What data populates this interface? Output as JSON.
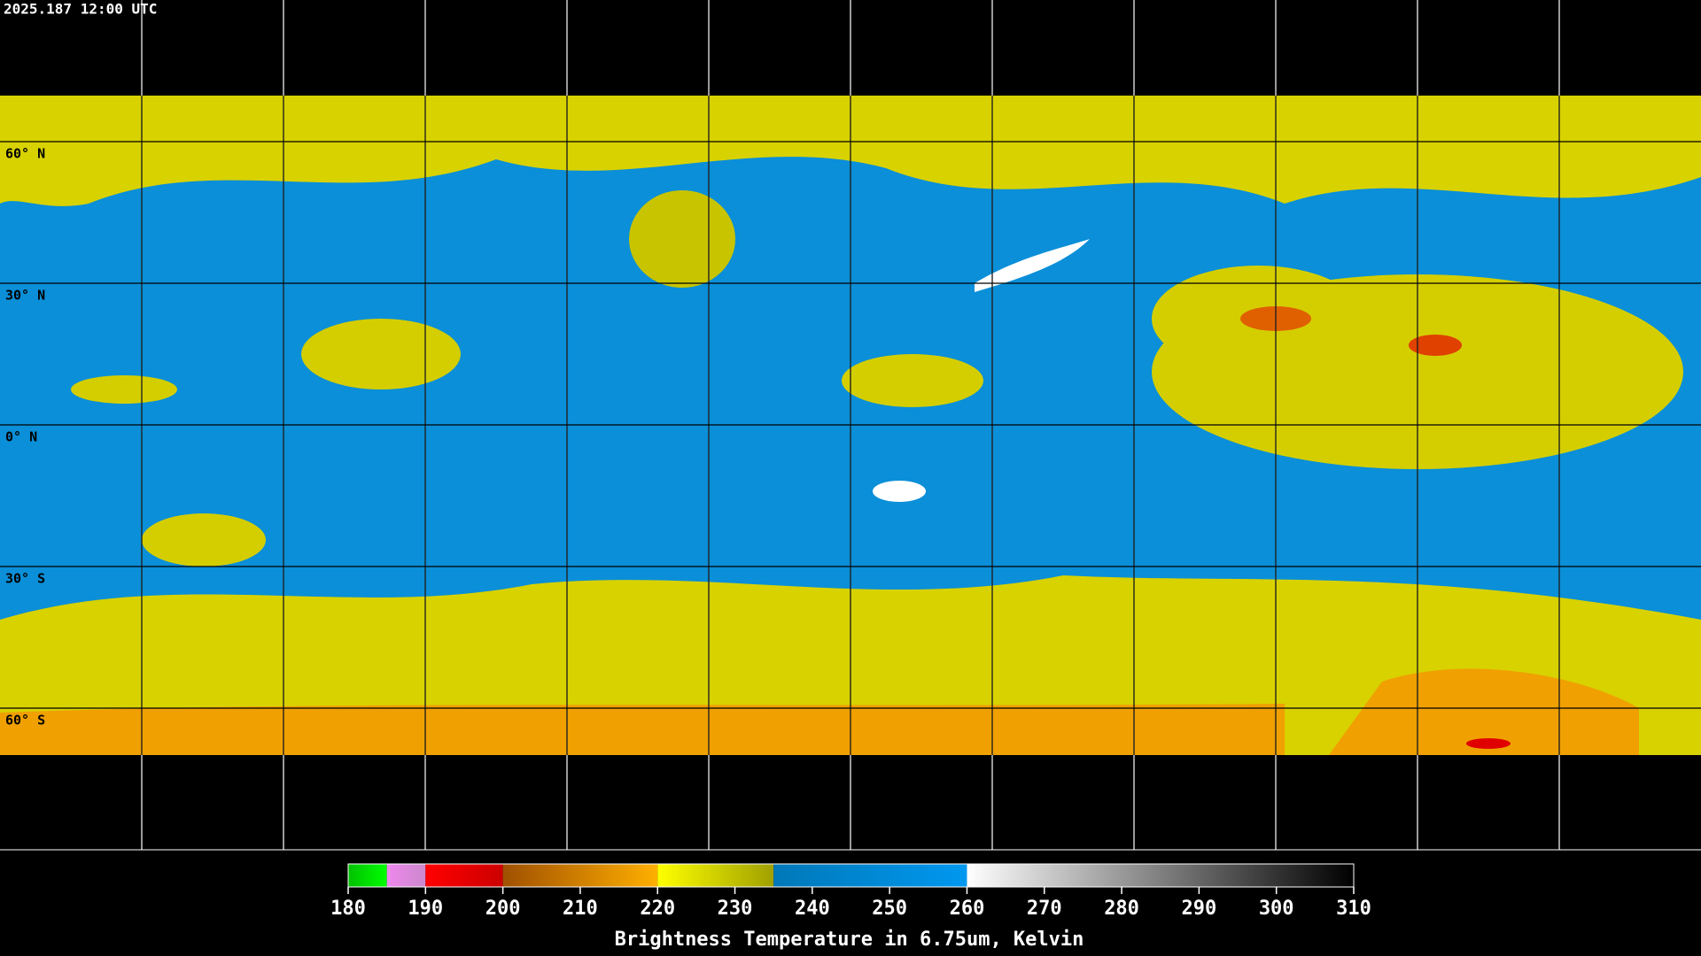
{
  "header": {
    "title": "2025.187 12:00 UTC"
  },
  "map": {
    "ylim": [
      90,
      -90
    ],
    "lat_lines": [
      {
        "value": 60,
        "label": "60° N"
      },
      {
        "value": 30,
        "label": "30° N"
      },
      {
        "value": 0,
        "label": "0° N"
      },
      {
        "value": -30,
        "label": "30° S"
      },
      {
        "value": -60,
        "label": "60° S"
      }
    ]
  },
  "colorbar": {
    "label": "Brightness Temperature in 6.75um, Kelvin",
    "lim": [
      180,
      310
    ],
    "ticks": [
      180,
      190,
      200,
      210,
      220,
      230,
      240,
      250,
      260,
      270,
      280,
      290,
      300,
      310
    ],
    "segments": [
      {
        "from": 180,
        "to": 185,
        "colors": [
          "#00c000",
          "#00ff00"
        ]
      },
      {
        "from": 185,
        "to": 190,
        "colors": [
          "#ee88ee",
          "#cc88cc"
        ]
      },
      {
        "from": 190,
        "to": 200,
        "colors": [
          "#ff0000",
          "#cc0000"
        ]
      },
      {
        "from": 200,
        "to": 220,
        "colors": [
          "#a05000",
          "#ffb000"
        ]
      },
      {
        "from": 220,
        "to": 235,
        "colors": [
          "#ffff00",
          "#a0a000"
        ]
      },
      {
        "from": 235,
        "to": 260,
        "colors": [
          "#0078b8",
          "#0098f0"
        ]
      },
      {
        "from": 260,
        "to": 310,
        "colors": [
          "#ffffff",
          "#000000"
        ]
      }
    ]
  }
}
